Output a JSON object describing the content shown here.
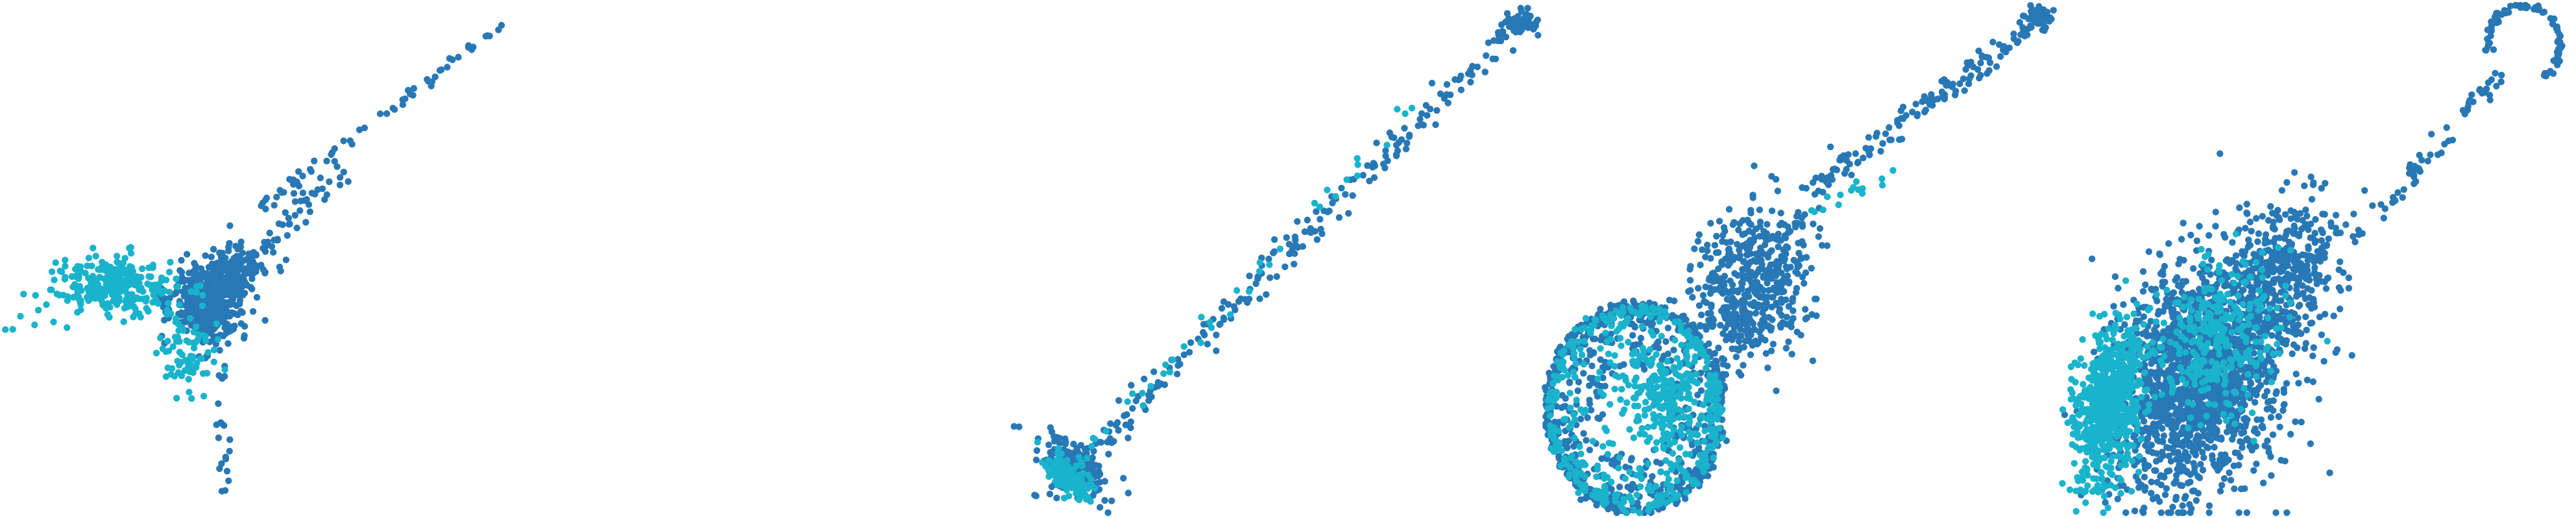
{
  "palette": {
    "background": "#ffffff",
    "series_dark": "#2878b5",
    "series_light": "#1ab3cc"
  },
  "chart_data": [
    {
      "type": "scatter",
      "panel": 1,
      "title": "",
      "xlabel": "",
      "ylabel": "",
      "axes_visible": false,
      "grid": false,
      "legend": "none",
      "xlim": [
        0,
        800
      ],
      "ylim": [
        0,
        800
      ],
      "series": [
        {
          "color_key": "series_dark",
          "clusters": [
            {
              "shape": "blob",
              "center": [
                320,
                470
              ],
              "spread": [
                50,
                55
              ],
              "rotation": 0,
              "count": 420
            },
            {
              "shape": "blob",
              "center": [
                360,
                420
              ],
              "spread": [
                50,
                40
              ],
              "rotation": 0,
              "count": 150
            },
            {
              "shape": "line",
              "from": [
                400,
                320
              ],
              "to": [
                785,
                30
              ],
              "jitter": 4,
              "count": 60
            },
            {
              "shape": "line",
              "from": [
                360,
                440
              ],
              "to": [
                520,
                260
              ],
              "jitter": 12,
              "count": 70
            },
            {
              "shape": "line",
              "from": [
                335,
                520
              ],
              "to": [
                350,
                770
              ],
              "jitter": 5,
              "count": 22
            }
          ]
        },
        {
          "color_key": "series_light",
          "clusters": [
            {
              "shape": "blob",
              "center": [
                180,
                440
              ],
              "spread": [
                80,
                35
              ],
              "rotation": 0.1,
              "count": 260
            },
            {
              "shape": "blob",
              "center": [
                290,
                540
              ],
              "spread": [
                40,
                60
              ],
              "rotation": 0,
              "count": 80
            },
            {
              "shape": "line",
              "from": [
                0,
                500
              ],
              "to": [
                220,
                400
              ],
              "jitter": 25,
              "count": 40
            }
          ]
        }
      ]
    },
    {
      "type": "scatter",
      "panel": 2,
      "title": "",
      "xlabel": "",
      "ylabel": "",
      "axes_visible": false,
      "grid": false,
      "legend": "none",
      "xlim": [
        0,
        800
      ],
      "ylim": [
        0,
        800
      ],
      "series": [
        {
          "color_key": "series_dark",
          "clusters": [
            {
              "shape": "line",
              "from": [
                1605,
                770
              ],
              "to": [
                2355,
                20
              ],
              "jitter": 10,
              "count": 230
            },
            {
              "shape": "blob",
              "center": [
                1660,
                720
              ],
              "spread": [
                25,
                50
              ],
              "rotation": -0.8,
              "count": 200
            },
            {
              "shape": "blob",
              "center": [
                2345,
                35
              ],
              "spread": [
                25,
                15
              ],
              "rotation": 0,
              "count": 60
            }
          ]
        },
        {
          "color_key": "series_light",
          "clusters": [
            {
              "shape": "blob",
              "center": [
                1645,
                735
              ],
              "spread": [
                22,
                40
              ],
              "rotation": -0.8,
              "count": 160
            },
            {
              "shape": "line",
              "from": [
                1620,
                750
              ],
              "to": [
                2180,
                170
              ],
              "jitter": 8,
              "count": 40
            }
          ]
        }
      ]
    },
    {
      "type": "scatter",
      "panel": 3,
      "title": "",
      "xlabel": "",
      "ylabel": "",
      "axes_visible": false,
      "grid": false,
      "legend": "none",
      "xlim": [
        0,
        800
      ],
      "ylim": [
        0,
        800
      ],
      "series": [
        {
          "color_key": "series_dark",
          "clusters": [
            {
              "shape": "ring",
              "center": [
                2520,
                630
              ],
              "spread": [
                135,
                160
              ],
              "rotation": 0,
              "count": 700
            },
            {
              "shape": "blob",
              "center": [
                2700,
                440
              ],
              "spread": [
                75,
                110
              ],
              "rotation": 0.3,
              "count": 520
            },
            {
              "shape": "line",
              "from": [
                2780,
                300
              ],
              "to": [
                3160,
                20
              ],
              "jitter": 10,
              "count": 140
            },
            {
              "shape": "blob",
              "center": [
                3145,
                25
              ],
              "spread": [
                18,
                15
              ],
              "rotation": 0,
              "count": 50
            }
          ]
        },
        {
          "color_key": "series_light",
          "clusters": [
            {
              "shape": "ring",
              "center": [
                2520,
                630
              ],
              "spread": [
                130,
                155
              ],
              "rotation": 0,
              "count": 450
            },
            {
              "shape": "blob",
              "center": [
                2560,
                610
              ],
              "spread": [
                60,
                70
              ],
              "rotation": 0,
              "count": 200
            },
            {
              "shape": "line",
              "from": [
                2800,
                330
              ],
              "to": [
                2920,
                260
              ],
              "jitter": 8,
              "count": 15
            }
          ]
        }
      ]
    },
    {
      "type": "scatter",
      "panel": 4,
      "title": "",
      "xlabel": "",
      "ylabel": "",
      "axes_visible": false,
      "grid": false,
      "legend": "none",
      "xlim": [
        0,
        800
      ],
      "ylim": [
        0,
        800
      ],
      "series": [
        {
          "color_key": "series_dark",
          "clusters": [
            {
              "shape": "blob",
              "center": [
                3390,
                580
              ],
              "spread": [
                115,
                170
              ],
              "rotation": 0.35,
              "count": 1700
            },
            {
              "shape": "blob",
              "center": [
                3520,
                420
              ],
              "spread": [
                70,
                110
              ],
              "rotation": 0.35,
              "count": 400
            },
            {
              "shape": "line",
              "from": [
                3640,
                360
              ],
              "to": [
                3850,
                120
              ],
              "jitter": 10,
              "count": 60
            },
            {
              "shape": "arc",
              "center": [
                3890,
                70
              ],
              "spread": [
                55,
                62
              ],
              "rotation": 0,
              "arc": [
                -3.3,
                0.9
              ],
              "count": 90
            }
          ]
        },
        {
          "color_key": "series_light",
          "clusters": [
            {
              "shape": "blob",
              "center": [
                3250,
                620
              ],
              "spread": [
                45,
                110
              ],
              "rotation": 0.2,
              "count": 650
            },
            {
              "shape": "blob",
              "center": [
                3420,
                520
              ],
              "spread": [
                80,
                120
              ],
              "rotation": 0.35,
              "count": 300
            }
          ]
        }
      ]
    }
  ]
}
